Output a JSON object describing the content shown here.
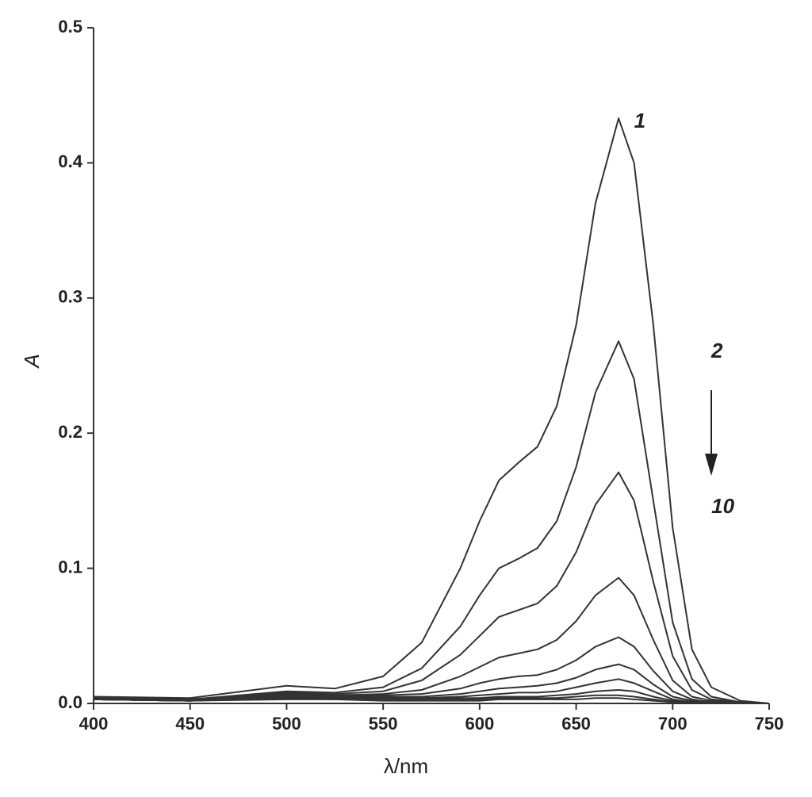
{
  "chart_data": {
    "type": "line",
    "x_label": "λ/nm",
    "y_label": "A",
    "x": [
      400,
      450,
      500,
      525,
      550,
      570,
      590,
      600,
      610,
      620,
      630,
      640,
      650,
      660,
      672,
      680,
      690,
      700,
      710,
      720,
      735,
      750
    ],
    "color": "#333333",
    "series": [
      {
        "values": [
          0.005,
          0.004,
          0.013,
          0.011,
          0.02,
          0.045,
          0.1,
          0.135,
          0.165,
          0.178,
          0.19,
          0.22,
          0.28,
          0.37,
          0.433,
          0.4,
          0.28,
          0.13,
          0.04,
          0.012,
          0.002,
          0
        ]
      },
      {
        "values": [
          0.004,
          0.003,
          0.009,
          0.008,
          0.012,
          0.026,
          0.057,
          0.08,
          0.1,
          0.107,
          0.115,
          0.135,
          0.175,
          0.23,
          0.268,
          0.24,
          0.15,
          0.06,
          0.018,
          0.005,
          0.001,
          0
        ]
      },
      {
        "values": [
          0.004,
          0.003,
          0.008,
          0.007,
          0.009,
          0.017,
          0.036,
          0.05,
          0.064,
          0.069,
          0.074,
          0.087,
          0.112,
          0.147,
          0.171,
          0.15,
          0.09,
          0.035,
          0.01,
          0.003,
          0.001,
          0
        ]
      },
      {
        "values": [
          0.003,
          0.002,
          0.007,
          0.006,
          0.007,
          0.01,
          0.02,
          0.027,
          0.034,
          0.037,
          0.04,
          0.047,
          0.061,
          0.08,
          0.093,
          0.08,
          0.047,
          0.017,
          0.005,
          0.002,
          0,
          0
        ]
      },
      {
        "values": [
          0.003,
          0.002,
          0.006,
          0.005,
          0.006,
          0.007,
          0.011,
          0.015,
          0.018,
          0.02,
          0.021,
          0.025,
          0.032,
          0.042,
          0.049,
          0.042,
          0.024,
          0.009,
          0.003,
          0.001,
          0,
          0
        ]
      },
      {
        "values": [
          0.003,
          0.002,
          0.005,
          0.005,
          0.005,
          0.005,
          0.007,
          0.009,
          0.011,
          0.012,
          0.013,
          0.015,
          0.019,
          0.025,
          0.029,
          0.025,
          0.014,
          0.005,
          0.002,
          0.001,
          0,
          0
        ]
      },
      {
        "values": [
          0.003,
          0.002,
          0.005,
          0.004,
          0.004,
          0.004,
          0.005,
          0.006,
          0.007,
          0.008,
          0.008,
          0.009,
          0.012,
          0.015,
          0.018,
          0.015,
          0.009,
          0.003,
          0.001,
          0,
          0,
          0
        ]
      },
      {
        "values": [
          0.003,
          0.002,
          0.004,
          0.004,
          0.004,
          0.003,
          0.004,
          0.004,
          0.005,
          0.005,
          0.005,
          0.006,
          0.007,
          0.009,
          0.01,
          0.009,
          0.005,
          0.002,
          0.001,
          0,
          0,
          0
        ]
      },
      {
        "values": [
          0.003,
          0.002,
          0.004,
          0.003,
          0.003,
          0.003,
          0.003,
          0.003,
          0.004,
          0.004,
          0.004,
          0.004,
          0.005,
          0.006,
          0.006,
          0.005,
          0.003,
          0.001,
          0,
          0,
          0,
          0
        ]
      },
      {
        "values": [
          0.003,
          0.002,
          0.003,
          0.003,
          0.002,
          0.002,
          0.002,
          0.002,
          0.003,
          0.003,
          0.003,
          0.003,
          0.003,
          0.004,
          0.004,
          0.003,
          0.002,
          0.001,
          0,
          0,
          0,
          0
        ]
      }
    ],
    "xlim": [
      400,
      750
    ],
    "xticks": [
      400,
      450,
      500,
      550,
      600,
      650,
      700,
      750
    ],
    "ylim": [
      0,
      0.5
    ],
    "yticks": [
      {
        "value": 0,
        "label": "0.0"
      },
      0.1,
      0.2,
      0.3,
      0.4,
      0.5
    ],
    "annotations": [
      {
        "text": "1",
        "x": 683,
        "y": 0.43
      },
      {
        "text": "2",
        "x": 723,
        "y": 0.26
      },
      {
        "text": "10",
        "x": 726,
        "y": 0.145
      }
    ]
  }
}
